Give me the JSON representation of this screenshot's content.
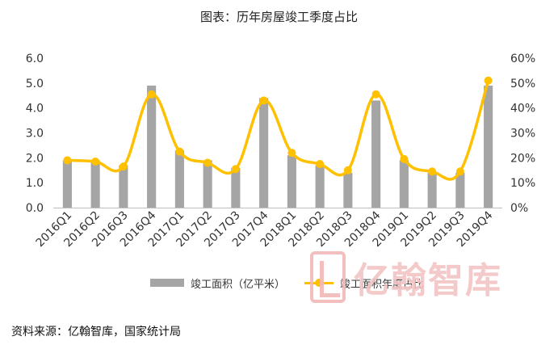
{
  "title": "图表：历年房屋竣工季度占比",
  "source": "资料来源：亿翰智库，国家统计局",
  "watermark": "亿翰智库",
  "chart_data": {
    "type": "bar",
    "categories": [
      "2016Q1",
      "2016Q2",
      "2016Q3",
      "2016Q4",
      "2017Q1",
      "2017Q2",
      "2017Q3",
      "2017Q4",
      "2018Q1",
      "2018Q2",
      "2018Q3",
      "2018Q4",
      "2019Q1",
      "2019Q2",
      "2019Q3",
      "2019Q4"
    ],
    "series": [
      {
        "name": "竣工面积（亿平米）",
        "type": "bar",
        "axis": "left",
        "color": "#a5a5a5",
        "values": [
          1.9,
          1.9,
          1.7,
          4.9,
          2.3,
          1.9,
          1.6,
          4.4,
          2.1,
          1.7,
          1.4,
          4.3,
          1.9,
          1.4,
          1.4,
          4.9
        ]
      },
      {
        "name": "竣工面积年度占比",
        "type": "line",
        "axis": "right",
        "color": "#ffc000",
        "values": [
          19,
          18.5,
          16.5,
          45.5,
          22.5,
          18,
          15.5,
          43,
          22,
          17.5,
          15,
          45.5,
          19.5,
          14.5,
          14.5,
          51
        ]
      }
    ],
    "y_left": {
      "min": 0,
      "max": 6,
      "step": 1,
      "ticks": [
        "0.0",
        "1.0",
        "2.0",
        "3.0",
        "4.0",
        "5.0",
        "6.0"
      ]
    },
    "y_right": {
      "min": 0,
      "max": 60,
      "step": 10,
      "ticks": [
        "0%",
        "10%",
        "20%",
        "30%",
        "40%",
        "50%",
        "60%"
      ]
    },
    "grid": false,
    "legend": "bottom"
  }
}
